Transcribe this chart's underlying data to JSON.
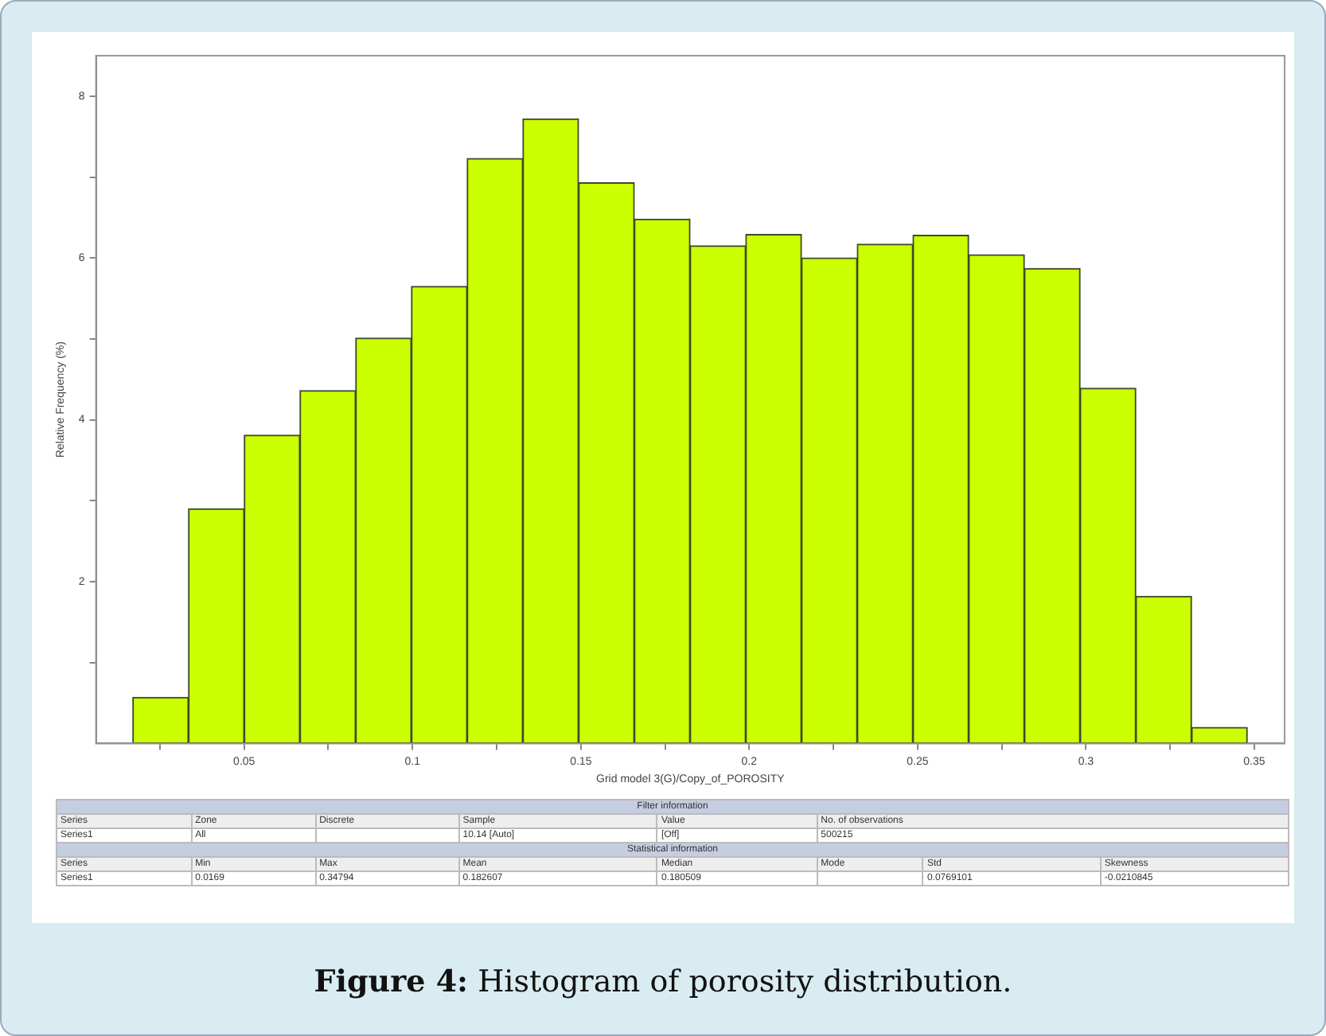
{
  "chart_data": {
    "type": "histogram",
    "title": "Figure 4: Histogram of porosity distribution.",
    "xlabel": "Grid model 3(G)/Copy_of_POROSITY",
    "ylabel": "Relative Frequency (%)",
    "bins": [
      0.0169,
      0.0335,
      0.05,
      0.0666,
      0.0831,
      0.0997,
      0.1162,
      0.1328,
      0.1493,
      0.1659,
      0.1824,
      0.199,
      0.2155,
      0.2321,
      0.2486,
      0.2652,
      0.2817,
      0.2983,
      0.3148,
      0.3314,
      0.3479
    ],
    "values": [
      0.57,
      2.9,
      3.81,
      4.36,
      5.01,
      5.65,
      7.23,
      7.72,
      6.93,
      6.48,
      6.15,
      6.29,
      6.0,
      6.17,
      6.28,
      6.04,
      5.87,
      4.39,
      1.82,
      0.2
    ],
    "color": "#ccff00",
    "xlim": [
      0.006,
      0.359
    ],
    "ylim": [
      0,
      8.5
    ],
    "xticks": [
      {
        "value": 0.025,
        "label": null
      },
      0.05,
      {
        "value": 0.075,
        "label": null
      },
      0.1,
      {
        "value": 0.125,
        "label": null
      },
      0.15,
      {
        "value": 0.175,
        "label": null
      },
      0.2,
      {
        "value": 0.225,
        "label": null
      },
      0.25,
      {
        "value": 0.275,
        "label": null
      },
      0.3,
      {
        "value": 0.325,
        "label": null
      },
      0.35
    ],
    "yticks": [
      {
        "value": 1,
        "label": null
      },
      2,
      {
        "value": 3,
        "label": null
      },
      4,
      {
        "value": 5,
        "label": null
      },
      6,
      {
        "value": 7,
        "label": null
      },
      8
    ],
    "grid": false,
    "annotations": [
      "Filter information",
      "Series",
      "Zone",
      "Discrete",
      "Sample",
      "Value",
      "No. of observations",
      "Series1",
      "All",
      null,
      "10.14 [Auto]",
      "[Off]",
      "500215",
      "Statistical information",
      "Series",
      "Min",
      "Max",
      "Mean",
      "Median",
      "Mode",
      "Std",
      "Skewness",
      "Series1",
      "0.0169",
      "0.34794",
      "0.182607",
      "0.180509",
      null,
      "0.0769101",
      "-0.0210845"
    ]
  }
}
